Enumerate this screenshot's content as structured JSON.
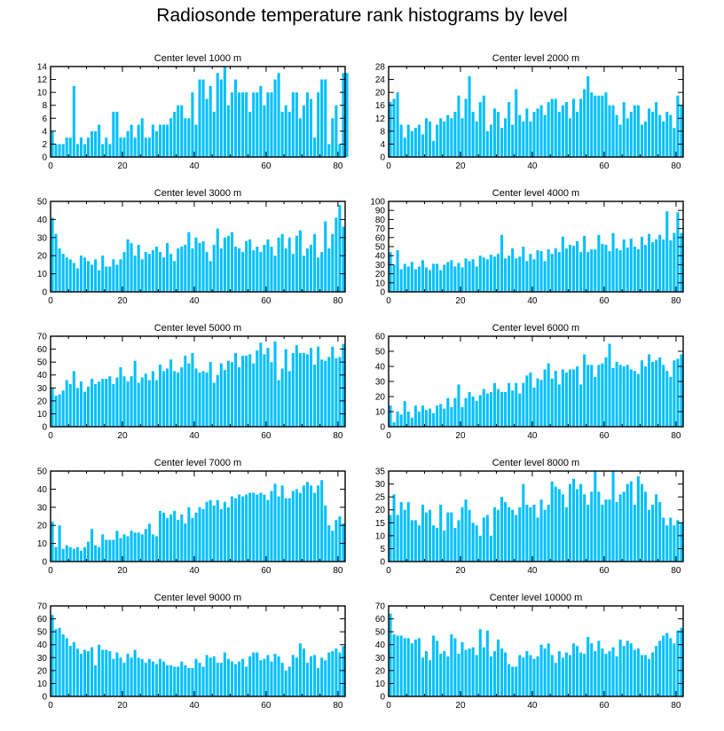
{
  "title": "Radiosonde temperature rank histograms by level",
  "colors": {
    "bar": "#00bfff",
    "bar_edge": "#ffffff",
    "axis": "#000000"
  },
  "chart_data": [
    {
      "type": "bar",
      "title": "Center level 1000 m",
      "xlim": [
        0,
        82
      ],
      "xticks": [
        0,
        20,
        40,
        60,
        80
      ],
      "ylim": [
        0,
        14
      ],
      "yticks": [
        0,
        2,
        4,
        6,
        8,
        10,
        12,
        14
      ],
      "values": [
        4,
        2,
        2,
        2,
        3,
        3,
        11,
        2,
        3,
        2,
        3,
        4,
        4,
        5,
        2,
        3,
        2,
        7,
        7,
        3,
        3,
        4,
        5,
        3,
        5,
        6,
        3,
        3,
        5,
        4,
        5,
        5,
        5,
        6,
        7,
        8,
        8,
        6,
        6,
        10,
        5,
        12,
        12,
        9,
        11,
        7,
        13,
        12,
        14,
        8,
        10,
        12,
        10,
        10,
        10,
        7,
        10,
        10,
        11,
        8,
        10,
        10,
        12,
        13,
        7,
        8,
        7,
        10,
        10,
        6,
        8,
        10,
        9,
        3,
        10,
        12,
        12,
        2,
        6,
        8,
        2,
        13,
        13
      ]
    },
    {
      "type": "bar",
      "title": "Center level 2000 m",
      "xlim": [
        0,
        82
      ],
      "xticks": [
        0,
        20,
        40,
        60,
        80
      ],
      "ylim": [
        0,
        28
      ],
      "yticks": [
        0,
        4,
        8,
        12,
        16,
        20,
        24,
        28
      ],
      "values": [
        17,
        18,
        20,
        10,
        6,
        10,
        8,
        9,
        10,
        7,
        12,
        11,
        5,
        10,
        12,
        11,
        13,
        12,
        14,
        19,
        12,
        18,
        25,
        14,
        11,
        17,
        19,
        8,
        10,
        15,
        14,
        9,
        12,
        17,
        10,
        21,
        13,
        11,
        15,
        11,
        14,
        15,
        16,
        13,
        17,
        18,
        18,
        14,
        16,
        17,
        12,
        18,
        14,
        18,
        21,
        25,
        20,
        19,
        19,
        19,
        20,
        16,
        16,
        13,
        10,
        17,
        12,
        14,
        16,
        16,
        10,
        11,
        15,
        14,
        17,
        13,
        11,
        14,
        13,
        9,
        19,
        16
      ]
    },
    {
      "type": "bar",
      "title": "Center level 3000 m",
      "xlim": [
        0,
        82
      ],
      "xticks": [
        0,
        20,
        40,
        60,
        80
      ],
      "ylim": [
        0,
        50
      ],
      "yticks": [
        0,
        10,
        20,
        30,
        40,
        50
      ],
      "values": [
        41,
        32,
        24,
        21,
        19,
        18,
        16,
        13,
        20,
        19,
        17,
        15,
        18,
        12,
        20,
        14,
        14,
        18,
        15,
        18,
        22,
        29,
        27,
        20,
        26,
        18,
        22,
        21,
        23,
        25,
        22,
        19,
        27,
        21,
        17,
        24,
        25,
        26,
        33,
        24,
        30,
        27,
        28,
        22,
        17,
        26,
        35,
        24,
        30,
        31,
        33,
        25,
        24,
        22,
        28,
        29,
        23,
        25,
        22,
        26,
        29,
        25,
        20,
        30,
        32,
        24,
        30,
        21,
        31,
        34,
        20,
        24,
        26,
        32,
        19,
        22,
        39,
        24,
        32,
        41,
        48,
        36
      ]
    },
    {
      "type": "bar",
      "title": "Center level 4000 m",
      "xlim": [
        0,
        82
      ],
      "xticks": [
        0,
        20,
        40,
        60,
        80
      ],
      "ylim": [
        0,
        100
      ],
      "yticks": [
        0,
        10,
        20,
        30,
        40,
        50,
        60,
        70,
        80,
        90,
        100
      ],
      "values": [
        44,
        30,
        46,
        25,
        31,
        28,
        33,
        25,
        28,
        35,
        27,
        24,
        31,
        31,
        24,
        30,
        33,
        35,
        28,
        32,
        27,
        37,
        34,
        36,
        28,
        40,
        38,
        36,
        41,
        39,
        42,
        63,
        37,
        40,
        48,
        37,
        39,
        50,
        34,
        42,
        36,
        46,
        45,
        34,
        47,
        42,
        48,
        44,
        61,
        48,
        52,
        51,
        56,
        44,
        62,
        44,
        47,
        47,
        63,
        53,
        52,
        45,
        65,
        48,
        46,
        58,
        49,
        59,
        50,
        47,
        61,
        52,
        64,
        55,
        58,
        63,
        58,
        89,
        57,
        65,
        88,
        65
      ]
    },
    {
      "type": "bar",
      "title": "Center level 5000 m",
      "xlim": [
        0,
        82
      ],
      "xticks": [
        0,
        20,
        40,
        60,
        80
      ],
      "ylim": [
        0,
        70
      ],
      "yticks": [
        0,
        10,
        20,
        30,
        40,
        50,
        60,
        70
      ],
      "values": [
        30,
        24,
        25,
        28,
        36,
        33,
        43,
        30,
        35,
        27,
        31,
        37,
        33,
        35,
        37,
        37,
        39,
        33,
        38,
        46,
        39,
        35,
        39,
        51,
        34,
        38,
        41,
        36,
        43,
        36,
        48,
        43,
        45,
        52,
        43,
        42,
        46,
        55,
        49,
        57,
        45,
        42,
        43,
        42,
        50,
        34,
        40,
        49,
        44,
        51,
        50,
        57,
        46,
        55,
        55,
        56,
        49,
        59,
        65,
        56,
        61,
        50,
        66,
        36,
        45,
        60,
        43,
        57,
        63,
        57,
        57,
        56,
        61,
        48,
        62,
        52,
        51,
        54,
        62,
        53,
        54,
        64
      ]
    },
    {
      "type": "bar",
      "title": "Center level 6000 m",
      "xlim": [
        0,
        82
      ],
      "xticks": [
        0,
        20,
        40,
        60,
        80
      ],
      "ylim": [
        0,
        60
      ],
      "yticks": [
        0,
        10,
        20,
        30,
        40,
        50,
        60
      ],
      "values": [
        14,
        3,
        10,
        8,
        17,
        10,
        6,
        14,
        10,
        14,
        11,
        12,
        9,
        14,
        15,
        12,
        19,
        13,
        19,
        28,
        13,
        19,
        23,
        20,
        17,
        21,
        25,
        22,
        23,
        29,
        25,
        23,
        23,
        29,
        24,
        29,
        22,
        29,
        34,
        36,
        26,
        32,
        31,
        38,
        42,
        32,
        37,
        28,
        38,
        36,
        38,
        38,
        40,
        28,
        48,
        41,
        41,
        33,
        41,
        42,
        46,
        55,
        39,
        43,
        41,
        40,
        41,
        38,
        37,
        35,
        44,
        40,
        48,
        43,
        44,
        46,
        41,
        37,
        33,
        44,
        45,
        48
      ]
    },
    {
      "type": "bar",
      "title": "Center level 7000 m",
      "xlim": [
        0,
        82
      ],
      "xticks": [
        0,
        20,
        40,
        60,
        80
      ],
      "ylim": [
        0,
        50
      ],
      "yticks": [
        0,
        10,
        20,
        30,
        40,
        50
      ],
      "values": [
        22,
        8,
        20,
        7,
        9,
        8,
        7,
        8,
        6,
        8,
        11,
        18,
        9,
        8,
        15,
        12,
        12,
        12,
        17,
        13,
        15,
        14,
        17,
        16,
        16,
        15,
        18,
        21,
        15,
        14,
        28,
        27,
        24,
        26,
        28,
        23,
        26,
        21,
        30,
        24,
        27,
        30,
        29,
        33,
        34,
        31,
        34,
        29,
        33,
        30,
        36,
        35,
        37,
        36,
        37,
        38,
        38,
        37,
        38,
        37,
        34,
        39,
        43,
        36,
        42,
        35,
        35,
        39,
        40,
        38,
        42,
        44,
        42,
        38,
        42,
        45,
        31,
        20,
        17,
        23,
        25,
        21
      ]
    },
    {
      "type": "bar",
      "title": "Center level 8000 m",
      "xlim": [
        0,
        82
      ],
      "xticks": [
        0,
        20,
        40,
        60,
        80
      ],
      "ylim": [
        0,
        35
      ],
      "yticks": [
        0,
        5,
        10,
        15,
        20,
        25,
        30,
        35
      ],
      "values": [
        18,
        26,
        18,
        23,
        20,
        23,
        16,
        16,
        14,
        22,
        19,
        20,
        14,
        13,
        22,
        12,
        19,
        19,
        13,
        16,
        21,
        24,
        20,
        15,
        14,
        10,
        17,
        18,
        10,
        21,
        20,
        25,
        23,
        21,
        20,
        18,
        21,
        30,
        22,
        21,
        22,
        17,
        24,
        20,
        22,
        31,
        29,
        28,
        26,
        21,
        30,
        32,
        28,
        30,
        26,
        22,
        27,
        35,
        27,
        22,
        24,
        24,
        35,
        23,
        26,
        27,
        30,
        31,
        22,
        33,
        30,
        27,
        20,
        22,
        26,
        23,
        17,
        14,
        17,
        14,
        16,
        15
      ]
    },
    {
      "type": "bar",
      "title": "Center level 9000 m",
      "xlim": [
        0,
        82
      ],
      "xticks": [
        0,
        20,
        40,
        60,
        80
      ],
      "ylim": [
        0,
        70
      ],
      "yticks": [
        0,
        10,
        20,
        30,
        40,
        50,
        60,
        70
      ],
      "values": [
        63,
        52,
        53,
        48,
        45,
        39,
        42,
        37,
        33,
        36,
        35,
        38,
        24,
        40,
        36,
        36,
        35,
        29,
        34,
        30,
        26,
        33,
        30,
        36,
        30,
        29,
        26,
        29,
        27,
        25,
        29,
        27,
        24,
        24,
        23,
        23,
        27,
        24,
        22,
        22,
        29,
        26,
        23,
        32,
        30,
        31,
        26,
        26,
        34,
        29,
        27,
        25,
        27,
        29,
        23,
        31,
        34,
        34,
        28,
        29,
        32,
        27,
        33,
        31,
        26,
        20,
        23,
        32,
        30,
        41,
        37,
        26,
        31,
        32,
        22,
        30,
        28,
        34,
        35,
        37,
        34,
        39
      ]
    },
    {
      "type": "bar",
      "title": "Center level 10000 m",
      "xlim": [
        0,
        82
      ],
      "xticks": [
        0,
        20,
        40,
        60,
        80
      ],
      "ylim": [
        0,
        70
      ],
      "yticks": [
        0,
        10,
        20,
        30,
        40,
        50,
        60,
        70
      ],
      "values": [
        64,
        48,
        47,
        47,
        45,
        45,
        41,
        44,
        45,
        30,
        35,
        28,
        47,
        43,
        33,
        35,
        31,
        48,
        45,
        33,
        42,
        36,
        37,
        38,
        32,
        52,
        38,
        51,
        31,
        35,
        44,
        37,
        34,
        25,
        23,
        23,
        32,
        30,
        35,
        32,
        29,
        31,
        40,
        37,
        41,
        32,
        26,
        35,
        30,
        34,
        32,
        41,
        39,
        34,
        33,
        46,
        41,
        35,
        43,
        37,
        33,
        35,
        38,
        31,
        44,
        39,
        43,
        41,
        36,
        37,
        32,
        32,
        29,
        34,
        39,
        43,
        47,
        49,
        45,
        41,
        51,
        53
      ]
    }
  ]
}
